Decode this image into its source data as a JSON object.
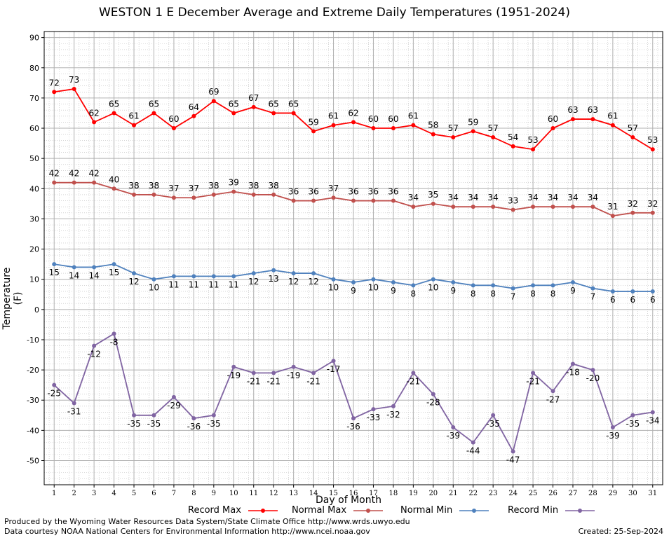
{
  "chart_data": {
    "type": "line",
    "title": "WESTON 1 E December Average and Extreme Daily Temperatures (1951-2024)",
    "xlabel": "Day of Month",
    "ylabel": "Temperature (F)",
    "x": [
      1,
      2,
      3,
      4,
      5,
      6,
      7,
      8,
      9,
      10,
      11,
      12,
      13,
      14,
      15,
      16,
      17,
      18,
      19,
      20,
      21,
      22,
      23,
      24,
      25,
      26,
      27,
      28,
      29,
      30,
      31
    ],
    "xlim": [
      0.5,
      31.5
    ],
    "ylim": [
      -58,
      92
    ],
    "yticks": [
      90,
      80,
      70,
      60,
      50,
      40,
      30,
      20,
      10,
      0,
      -10,
      -20,
      -30,
      -40,
      -50
    ],
    "grid": true,
    "series": [
      {
        "name": "Record Max",
        "color": "#ff0000",
        "values": [
          72,
          73,
          62,
          65,
          61,
          65,
          60,
          64,
          69,
          65,
          67,
          65,
          65,
          59,
          61,
          62,
          60,
          60,
          61,
          58,
          57,
          59,
          57,
          54,
          53,
          60,
          63,
          63,
          61,
          57,
          53
        ]
      },
      {
        "name": "Normal Max",
        "color": "#c0504d",
        "values": [
          42,
          42,
          42,
          40,
          38,
          38,
          37,
          37,
          38,
          39,
          38,
          38,
          36,
          36,
          37,
          36,
          36,
          36,
          34,
          35,
          34,
          34,
          34,
          33,
          34,
          34,
          34,
          34,
          31,
          32,
          32
        ]
      },
      {
        "name": "Normal Min",
        "color": "#4f81bd",
        "values": [
          15,
          14,
          14,
          15,
          12,
          10,
          11,
          11,
          11,
          11,
          12,
          13,
          12,
          12,
          10,
          9,
          10,
          9,
          8,
          10,
          9,
          8,
          8,
          7,
          8,
          8,
          9,
          7,
          6,
          6,
          6
        ]
      },
      {
        "name": "Record Min",
        "color": "#8064a2",
        "values": [
          -25,
          -31,
          -12,
          -8,
          -35,
          -35,
          -29,
          -36,
          -35,
          -19,
          -21,
          -21,
          -19,
          -21,
          -17,
          -36,
          -33,
          -32,
          -21,
          -28,
          -39,
          -44,
          -35,
          -47,
          -21,
          -27,
          -18,
          -20,
          -39,
          -35,
          -34
        ]
      }
    ]
  },
  "footer": {
    "produced_by": "Produced by the Wyoming Water Resources Data System/State Climate Office http://www.wrds.uwyo.edu",
    "courtesy": "Data courtesy NOAA National Centers for Environmental Information http://www.ncei.noaa.gov",
    "created": "Created:  25-Sep-2024"
  }
}
